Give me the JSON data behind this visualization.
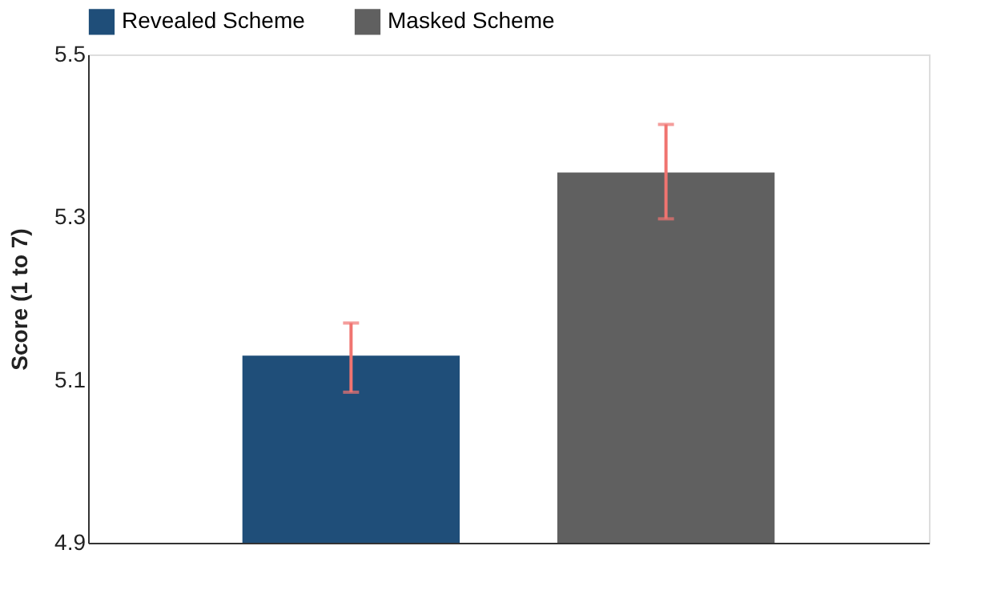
{
  "chart_data": {
    "type": "bar",
    "ylabel": "Score (1 to 7)",
    "categories": [
      null,
      null
    ],
    "series": [
      {
        "name": "Revealed Scheme",
        "color": "#1f4e79",
        "values": [
          5.13,
          null
        ],
        "errors": [
          [
            5.085,
            5.17
          ],
          null
        ]
      },
      {
        "name": "Masked Scheme",
        "color": "#606060",
        "values": [
          null,
          5.355
        ],
        "errors": [
          null,
          [
            5.298,
            5.414
          ]
        ]
      }
    ],
    "ylim": [
      4.9,
      5.5
    ],
    "yticks": [
      4.9,
      5.1,
      5.3,
      5.5
    ],
    "grid": false,
    "legend": "top"
  }
}
